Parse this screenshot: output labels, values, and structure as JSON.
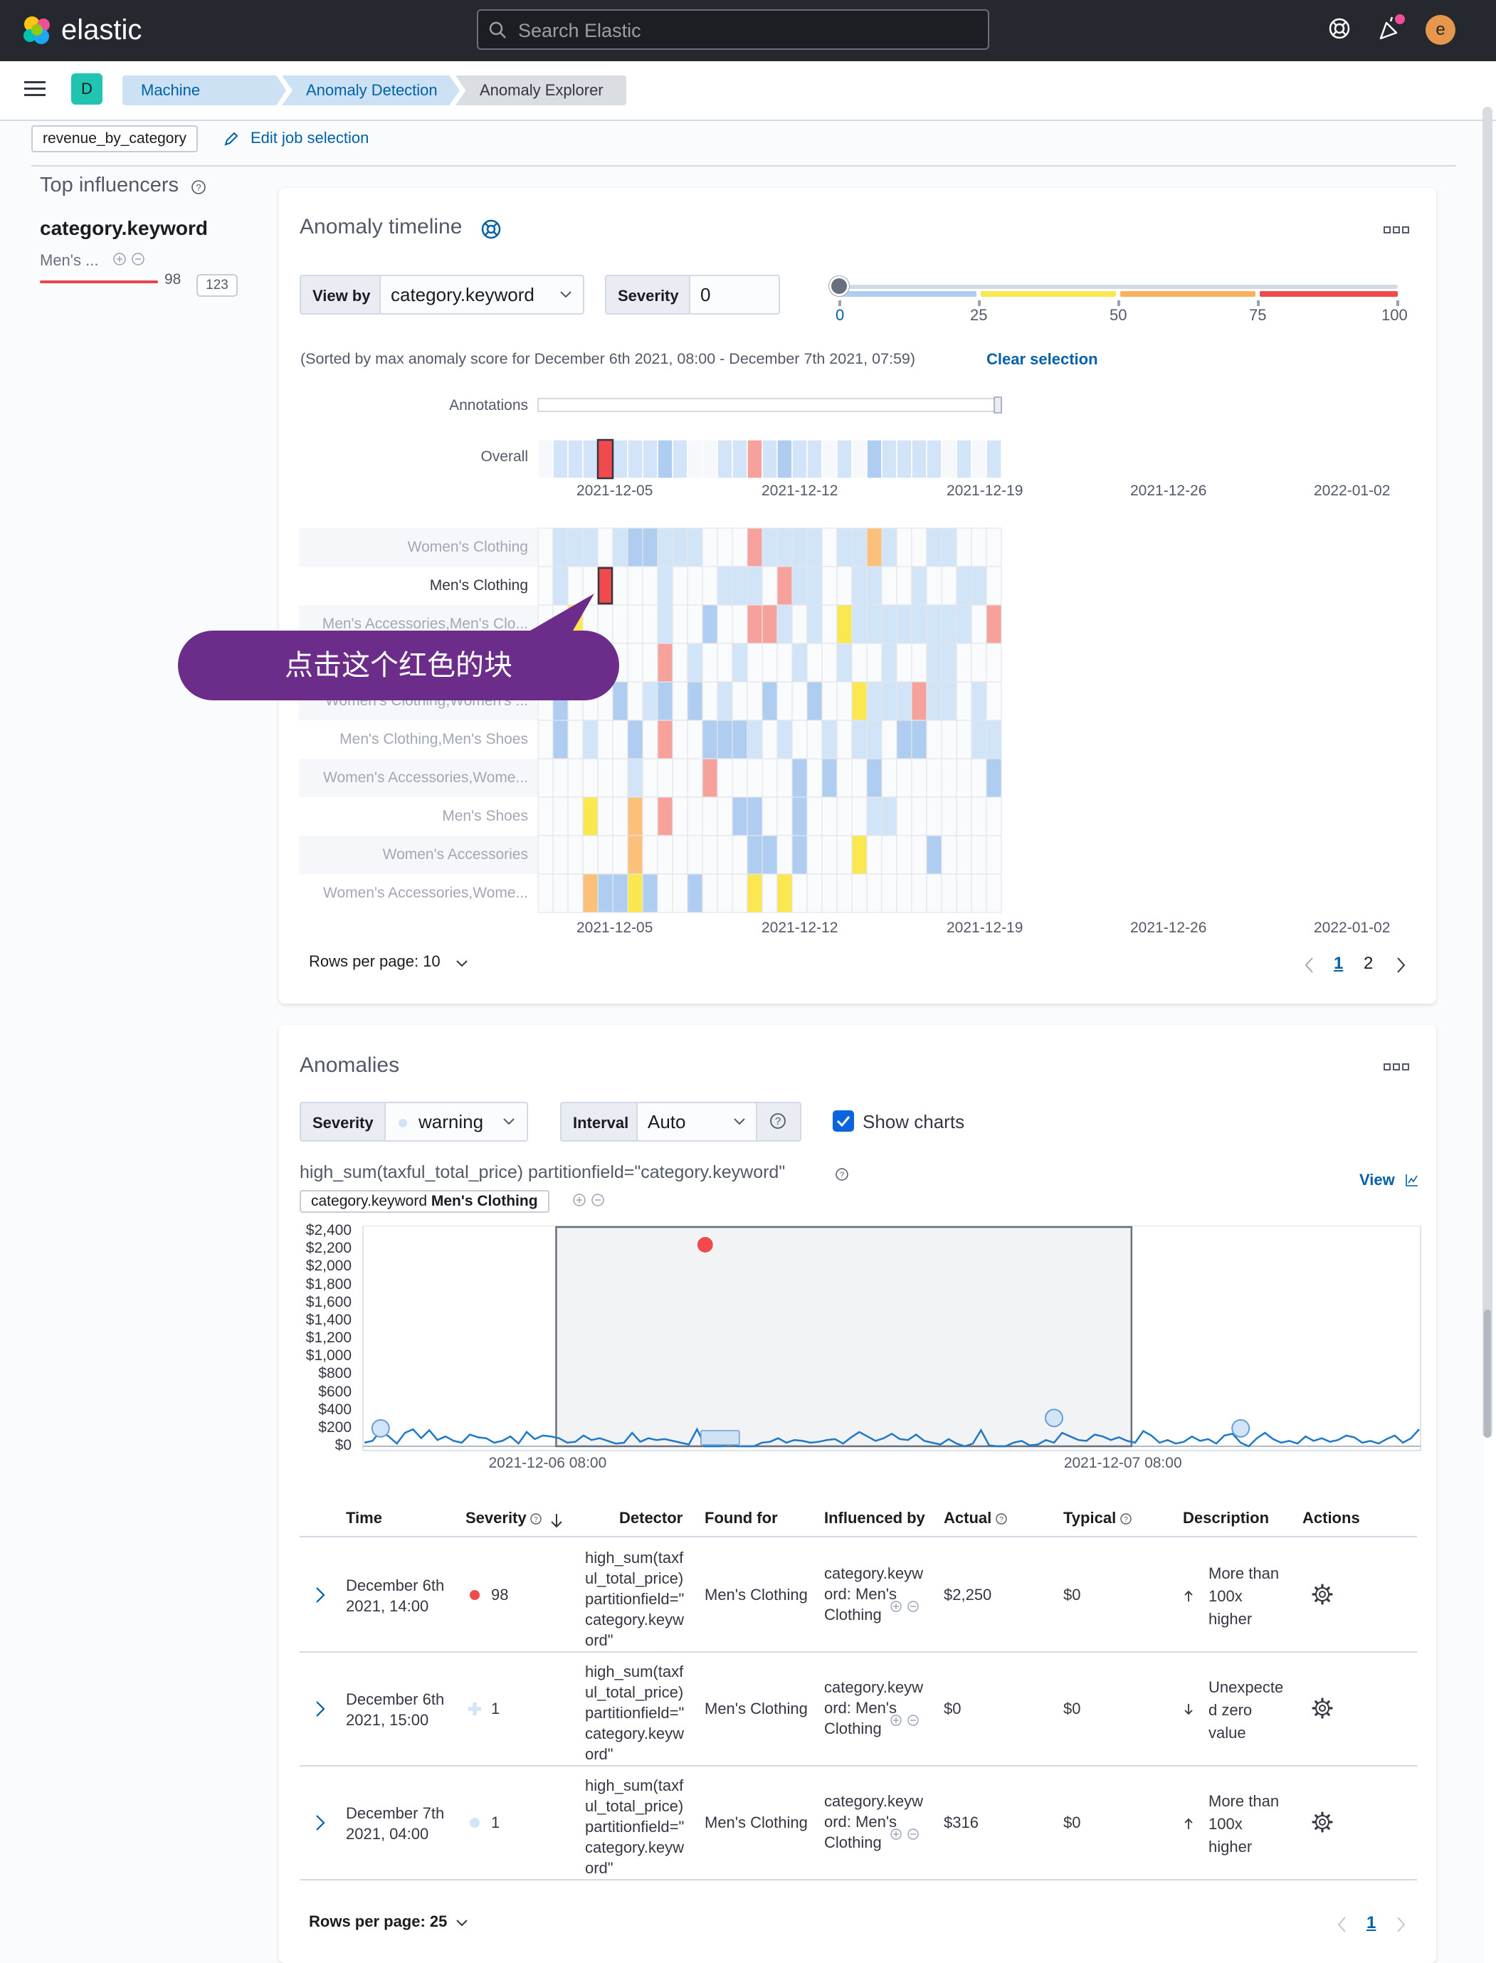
{
  "header": {
    "brand": "elastic",
    "search_placeholder": "Search Elastic",
    "avatar_initial": "e"
  },
  "nav": {
    "space_initial": "D",
    "breadcrumbs": [
      "Machine Learning",
      "Anomaly Detection",
      "Anomaly Explorer"
    ]
  },
  "job": {
    "badge": "revenue_by_category",
    "edit_label": "Edit job selection"
  },
  "influencers": {
    "title": "Top influencers",
    "field": "category.keyword",
    "label": "Men's ...",
    "score": "98",
    "count": "123",
    "score_value": 98
  },
  "timeline": {
    "title": "Anomaly timeline",
    "view_by_label": "View by",
    "view_by_value": "category.keyword",
    "severity_label": "Severity",
    "severity_value": "0",
    "slider_ticks": [
      "0",
      "25",
      "50",
      "75",
      "100"
    ],
    "slider_value": 0,
    "sorted_note": "(Sorted by max anomaly score for December 6th 2021, 08:00 - December 7th 2021, 07:59)",
    "clear_selection": "Clear selection",
    "annotations_label": "Annotations",
    "overall_label": "Overall",
    "x_ticks": [
      "2021-12-05",
      "2021-12-12",
      "2021-12-19",
      "2021-12-26",
      "2022-01-02"
    ],
    "swimlanes": [
      "Women's Clothing",
      "Men's Clothing",
      "Men's Accessories,Men's Clo...",
      "",
      "Women's Clothing,Women's ...",
      "Men's Clothing,Men's Shoes",
      "Women's Accessories,Wome...",
      "Men's Shoes",
      "Women's Accessories",
      "Women's Accessories,Wome..."
    ],
    "rows_per_page": "Rows per page: 10",
    "pages": [
      "1",
      "2"
    ],
    "callout": "点击这个红色的块",
    "colors": {
      "low": "#d2e4f7",
      "mid": "#aecdf0",
      "warning": "#fbe74f",
      "minor": "#fbc17b",
      "major": "#f6a19c",
      "critical": "#f04a4d"
    }
  },
  "anomalies": {
    "title": "Anomalies",
    "severity_label": "Severity",
    "severity_value": "warning",
    "interval_label": "Interval",
    "interval_value": "Auto",
    "show_charts": "Show charts",
    "chart_title": "high_sum(taxful_total_price) partitionfield=\"category.keyword\"",
    "view_link": "View",
    "entity_field": "category.keyword",
    "entity_value": "Men's Clothing",
    "columns": [
      "Time",
      "Severity",
      "Detector",
      "Found for",
      "Influenced by",
      "Actual",
      "Typical",
      "Description",
      "Actions"
    ],
    "rows": [
      {
        "time": [
          "December 6th",
          "2021, 14:00"
        ],
        "score": "98",
        "severity_color": "#f04a4d",
        "detector": [
          "high_sum(taxf",
          "ul_total_price)",
          "partitionfield=\"",
          "category.keyw",
          "ord\""
        ],
        "found_for": "Men's Clothing",
        "influenced": [
          "category.keyw",
          "ord: Men's",
          "Clothing"
        ],
        "actual": "$2,250",
        "typical": "$0",
        "direction": "up",
        "description": [
          "More than",
          "100x",
          "higher"
        ]
      },
      {
        "time": [
          "December 6th",
          "2021, 15:00"
        ],
        "score": "1",
        "severity_color": "#d2e4f7",
        "detector": [
          "high_sum(taxf",
          "ul_total_price)",
          "partitionfield=\"",
          "category.keyw",
          "ord\""
        ],
        "found_for": "Men's Clothing",
        "influenced": [
          "category.keyw",
          "ord: Men's",
          "Clothing"
        ],
        "actual": "$0",
        "typical": "$0",
        "direction": "down",
        "description": [
          "Unexpecte",
          "d zero",
          "value"
        ]
      },
      {
        "time": [
          "December 7th",
          "2021, 04:00"
        ],
        "score": "1",
        "severity_color": "#d2e4f7",
        "detector": [
          "high_sum(taxf",
          "ul_total_price)",
          "partitionfield=\"",
          "category.keyw",
          "ord\""
        ],
        "found_for": "Men's Clothing",
        "influenced": [
          "category.keyw",
          "ord: Men's",
          "Clothing"
        ],
        "actual": "$316",
        "typical": "$0",
        "direction": "up",
        "description": [
          "More than",
          "100x",
          "higher"
        ]
      }
    ],
    "rows_per_page": "Rows per page: 25",
    "pages": [
      "1"
    ]
  },
  "chart_data": {
    "type": "line",
    "title": "high_sum(taxful_total_price) partitionfield=\"category.keyword\"",
    "xlabel": "",
    "ylabel": "",
    "y_ticks": [
      "$0",
      "$200",
      "$400",
      "$600",
      "$800",
      "$1,000",
      "$1,200",
      "$1,400",
      "$1,600",
      "$1,800",
      "$2,000",
      "$2,200",
      "$2,400"
    ],
    "ylim": [
      0,
      2400
    ],
    "x_ticks": [
      "2021-12-06 08:00",
      "2021-12-07 08:00"
    ],
    "x_range_hours": [
      0,
      44
    ],
    "selection_hours": [
      8,
      32
    ],
    "values": [
      40,
      60,
      170,
      110,
      30,
      150,
      190,
      90,
      180,
      70,
      110,
      60,
      40,
      130,
      100,
      90,
      40,
      60,
      110,
      30,
      160,
      80,
      120,
      110,
      90,
      40,
      50,
      120,
      70,
      90,
      60,
      30,
      40,
      150,
      50,
      90,
      70,
      80,
      60,
      40,
      20,
      190,
      0,
      0,
      0,
      30,
      0,
      0,
      0,
      40,
      50,
      90,
      40,
      70,
      60,
      40,
      50,
      70,
      80,
      30,
      100,
      160,
      110,
      60,
      90,
      140,
      80,
      70,
      130,
      60,
      40,
      20,
      80,
      30,
      0,
      30,
      180,
      10,
      0,
      0,
      40,
      60,
      10,
      20,
      70,
      40,
      150,
      110,
      70,
      60,
      130,
      110,
      70,
      100,
      60,
      40,
      170,
      120,
      40,
      70,
      30,
      50,
      110,
      60,
      80,
      30,
      120,
      140,
      40,
      0,
      90,
      150,
      80,
      40,
      60,
      30,
      110,
      60,
      90,
      50,
      70,
      120,
      100,
      40,
      60,
      30,
      80,
      120,
      40,
      90,
      190
    ],
    "anomalies": [
      {
        "index": 2,
        "value": 200,
        "severity": "low"
      },
      {
        "index": 42,
        "value": 2250,
        "severity": "critical"
      },
      {
        "index": 85,
        "value": 316,
        "severity": "low"
      },
      {
        "index": 108,
        "value": 200,
        "severity": "low"
      }
    ]
  }
}
